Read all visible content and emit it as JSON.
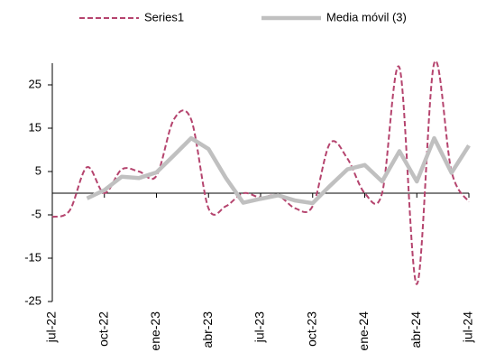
{
  "chart_data": {
    "type": "line",
    "categories": [
      "jul-22",
      null,
      null,
      "oct-22",
      null,
      null,
      "ene-23",
      null,
      null,
      "abr-23",
      null,
      null,
      "jul-23",
      null,
      null,
      "oct-23",
      null,
      null,
      "ene-24",
      null,
      null,
      "abr-24",
      null,
      null,
      "jul-24"
    ],
    "series": [
      {
        "name": "Series1",
        "color": "#b5446e",
        "dashed": true,
        "smooth": true,
        "values": [
          -5.5,
          -4,
          6,
          0,
          5.5,
          5,
          4,
          17,
          17,
          -3.5,
          -3,
          0,
          -1,
          -0.5,
          -3.5,
          -3,
          11.5,
          8,
          0,
          0,
          29,
          -21,
          30,
          5,
          -2
        ]
      },
      {
        "name": "Media móvil (3)",
        "color": "#c0c0c0",
        "dashed": false,
        "smooth": false,
        "values": [
          null,
          null,
          -1.2,
          0.7,
          3.8,
          3.5,
          4.8,
          8.7,
          12.7,
          10.2,
          3.5,
          -2.2,
          -1.3,
          -0.5,
          -1.7,
          -2.3,
          1.7,
          5.5,
          6.5,
          2.7,
          9.7,
          2.7,
          12.7,
          4.7,
          11
        ]
      }
    ],
    "ylim": [
      -25,
      30
    ],
    "yticks": [
      -25,
      -15,
      -5,
      5,
      15,
      25
    ],
    "grid": false,
    "legend": "top"
  }
}
